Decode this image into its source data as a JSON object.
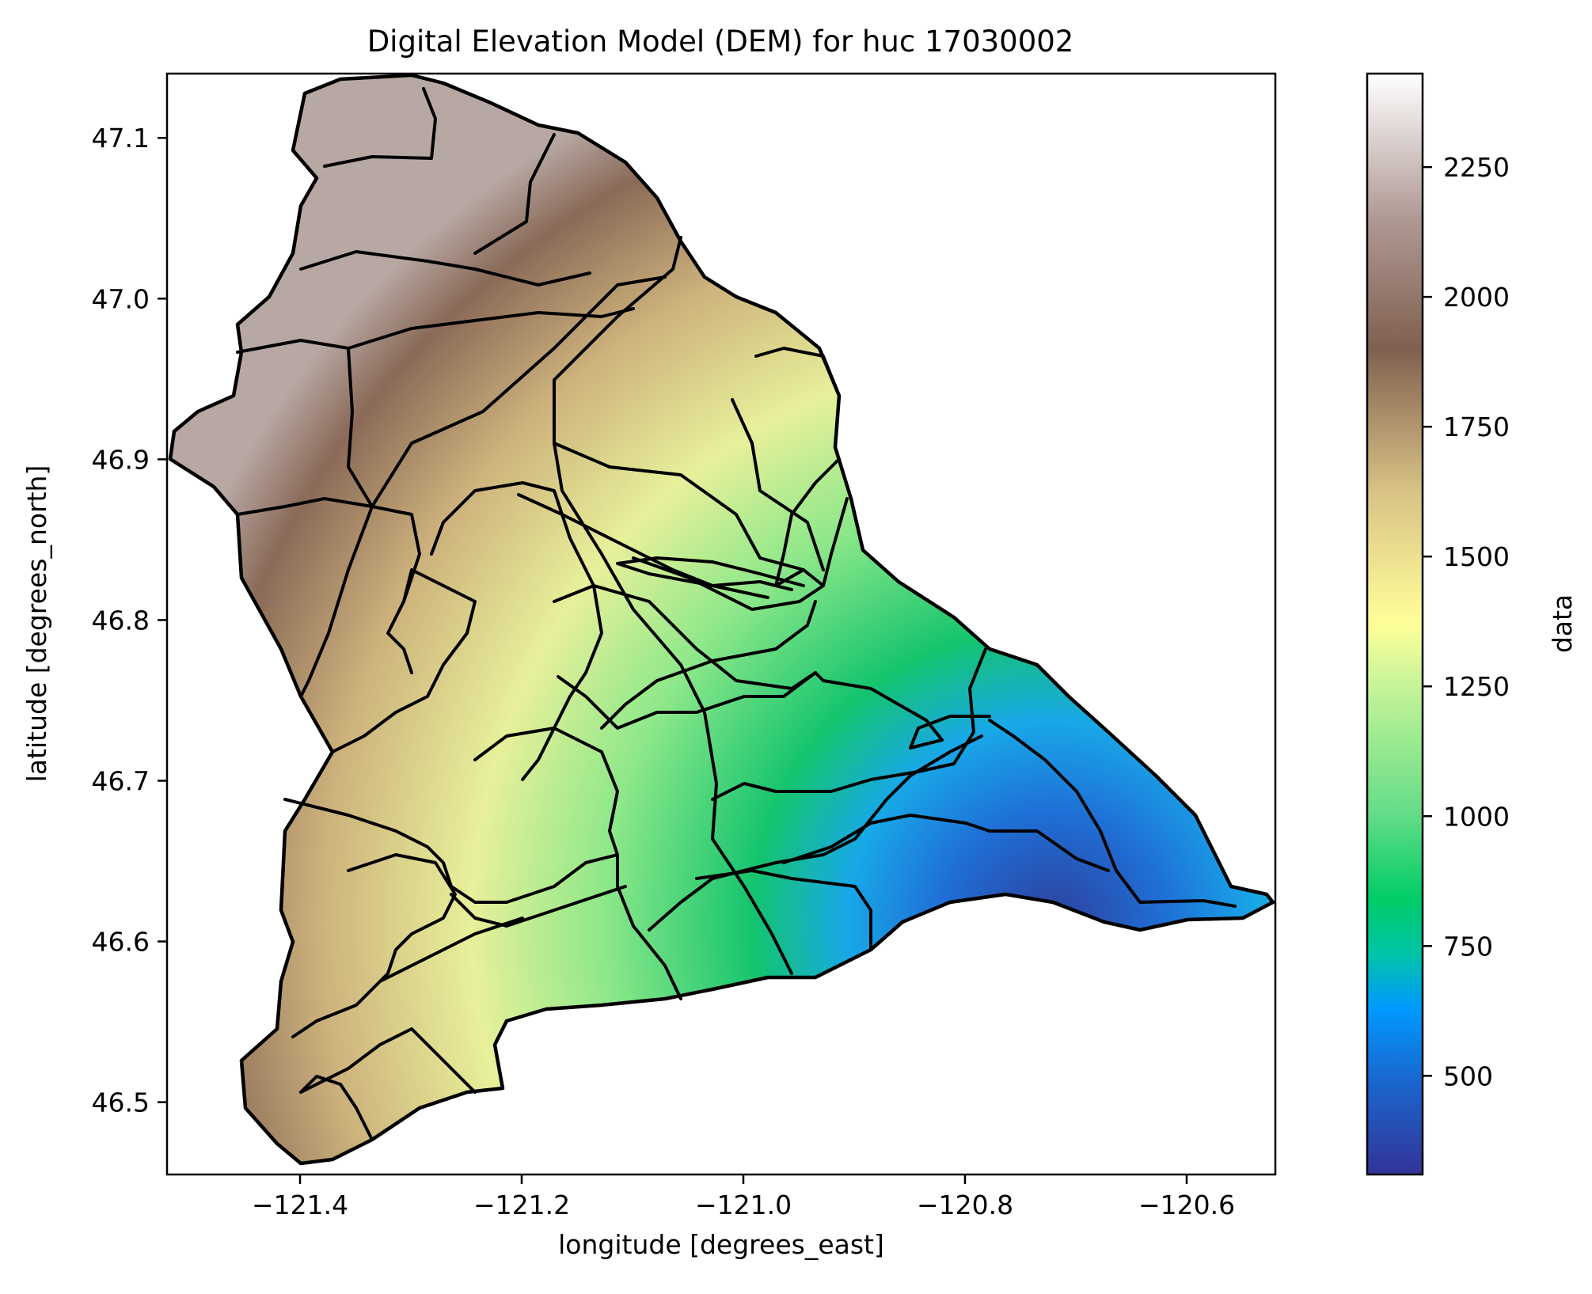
{
  "chart_data": {
    "type": "heatmap",
    "title": "Digital Elevation Model (DEM) for huc 17030002",
    "xlabel": "longitude [degrees_east]",
    "ylabel": "latitude [degrees_north]",
    "xlim": [
      -121.52,
      -120.52
    ],
    "ylim": [
      46.455,
      47.14
    ],
    "xticks": [
      -121.4,
      -121.2,
      -121.0,
      -120.8,
      -120.6
    ],
    "xtick_labels": [
      "−121.4",
      "−121.2",
      "−121.0",
      "−120.8",
      "−120.6"
    ],
    "yticks": [
      46.5,
      46.6,
      46.7,
      46.8,
      46.9,
      47.0,
      47.1
    ],
    "ytick_labels": [
      "46.5",
      "46.6",
      "46.7",
      "46.8",
      "46.9",
      "47.0",
      "47.1"
    ],
    "colorbar": {
      "label": "data",
      "colormap": "terrain",
      "vmin": 310,
      "vmax": 2430,
      "ticks": [
        500,
        750,
        1000,
        1250,
        1500,
        1750,
        2000,
        2250
      ],
      "tick_labels": [
        "500",
        "750",
        "1000",
        "1250",
        "1500",
        "1750",
        "2000",
        "2250"
      ]
    },
    "overlay": "sub-watershed boundaries (black outlines)",
    "grid": false
  }
}
